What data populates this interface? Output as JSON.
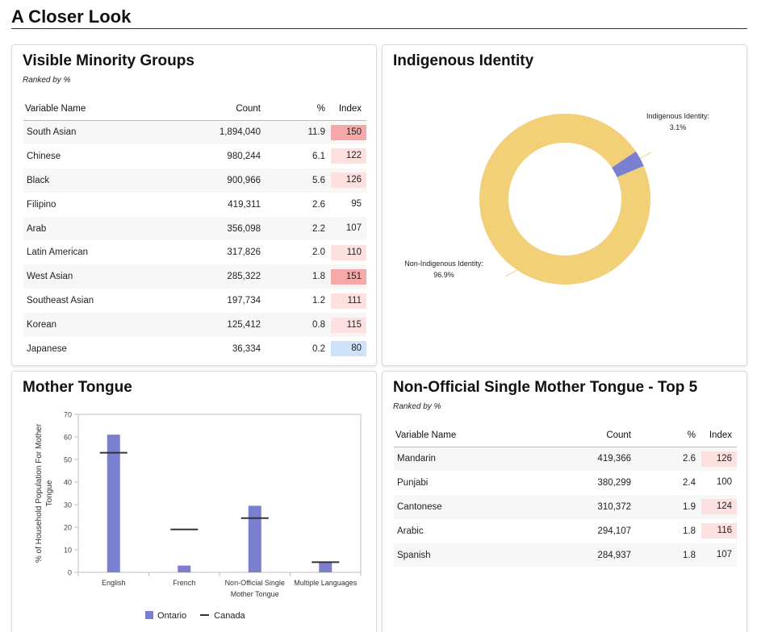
{
  "page": {
    "title": "A Closer Look"
  },
  "colors": {
    "index_high": "#f8a8a8",
    "index_mid": "#fde0e0",
    "index_low": "#cfe2fb",
    "ontario_bar": "#7b7fcf",
    "canada_marker": "#333333",
    "donut_main": "#f1d078",
    "donut_minor": "#7b7fcf"
  },
  "visible_minority": {
    "title": "Visible Minority Groups",
    "subtitle": "Ranked by %",
    "columns": [
      "Variable Name",
      "Count",
      "%",
      "Index"
    ],
    "rows": [
      {
        "name": "South Asian",
        "count": "1,894,040",
        "pct": "11.9",
        "index": "150",
        "level": "high"
      },
      {
        "name": "Chinese",
        "count": "980,244",
        "pct": "6.1",
        "index": "122",
        "level": "mid"
      },
      {
        "name": "Black",
        "count": "900,966",
        "pct": "5.6",
        "index": "126",
        "level": "mid"
      },
      {
        "name": "Filipino",
        "count": "419,311",
        "pct": "2.6",
        "index": "95",
        "level": "none"
      },
      {
        "name": "Arab",
        "count": "356,098",
        "pct": "2.2",
        "index": "107",
        "level": "none"
      },
      {
        "name": "Latin American",
        "count": "317,826",
        "pct": "2.0",
        "index": "110",
        "level": "mid"
      },
      {
        "name": "West Asian",
        "count": "285,322",
        "pct": "1.8",
        "index": "151",
        "level": "high"
      },
      {
        "name": "Southeast Asian",
        "count": "197,734",
        "pct": "1.2",
        "index": "111",
        "level": "mid"
      },
      {
        "name": "Korean",
        "count": "125,412",
        "pct": "0.8",
        "index": "115",
        "level": "mid"
      },
      {
        "name": "Japanese",
        "count": "36,334",
        "pct": "0.2",
        "index": "80",
        "level": "low"
      }
    ]
  },
  "indigenous": {
    "title": "Indigenous Identity",
    "labels": [
      {
        "line1": "Indigenous Identity:",
        "line2": "3.1%"
      },
      {
        "line1": "Non-Indigenous Identity:",
        "line2": "96.9%"
      }
    ]
  },
  "mother_tongue": {
    "title": "Mother Tongue",
    "legend": {
      "ontario": "Ontario",
      "canada": "Canada"
    }
  },
  "non_official": {
    "title": "Non-Official Single Mother Tongue - Top 5",
    "subtitle": "Ranked by %",
    "columns": [
      "Variable Name",
      "Count",
      "%",
      "Index"
    ],
    "rows": [
      {
        "name": "Mandarin",
        "count": "419,366",
        "pct": "2.6",
        "index": "126",
        "level": "mid"
      },
      {
        "name": "Punjabi",
        "count": "380,299",
        "pct": "2.4",
        "index": "100",
        "level": "none"
      },
      {
        "name": "Cantonese",
        "count": "310,372",
        "pct": "1.9",
        "index": "124",
        "level": "mid"
      },
      {
        "name": "Arabic",
        "count": "294,107",
        "pct": "1.8",
        "index": "116",
        "level": "mid"
      },
      {
        "name": "Spanish",
        "count": "284,937",
        "pct": "1.8",
        "index": "107",
        "level": "none"
      }
    ]
  },
  "chart_data": [
    {
      "type": "pie",
      "title": "Indigenous Identity",
      "donut": true,
      "labels": [
        "Indigenous Identity",
        "Non-Indigenous Identity"
      ],
      "values": [
        3.1,
        96.9
      ],
      "colors": [
        "#7b7fcf",
        "#f1d078"
      ]
    },
    {
      "type": "bar",
      "title": "Mother Tongue",
      "categories": [
        "English",
        "French",
        "Non-Official Single Mother Tongue",
        "Multiple Languages"
      ],
      "category_lines": [
        [
          "English"
        ],
        [
          "French"
        ],
        [
          "Non-Official Single",
          "Mother Tongue"
        ],
        [
          "Multiple Languages"
        ]
      ],
      "series": [
        {
          "name": "Ontario",
          "kind": "bar",
          "values": [
            61,
            3,
            29.5,
            4.5
          ]
        },
        {
          "name": "Canada",
          "kind": "marker",
          "values": [
            53,
            19,
            24,
            4.5
          ]
        }
      ],
      "ylabel": "% of Household Population For Mother Tongue",
      "ylabel_lines": [
        "% of Household Population For Mother",
        "Tongue"
      ],
      "ylim": [
        0,
        70
      ],
      "yticks": [
        0,
        10,
        20,
        30,
        40,
        50,
        60,
        70
      ],
      "grid": false,
      "legend_position": "bottom"
    }
  ]
}
